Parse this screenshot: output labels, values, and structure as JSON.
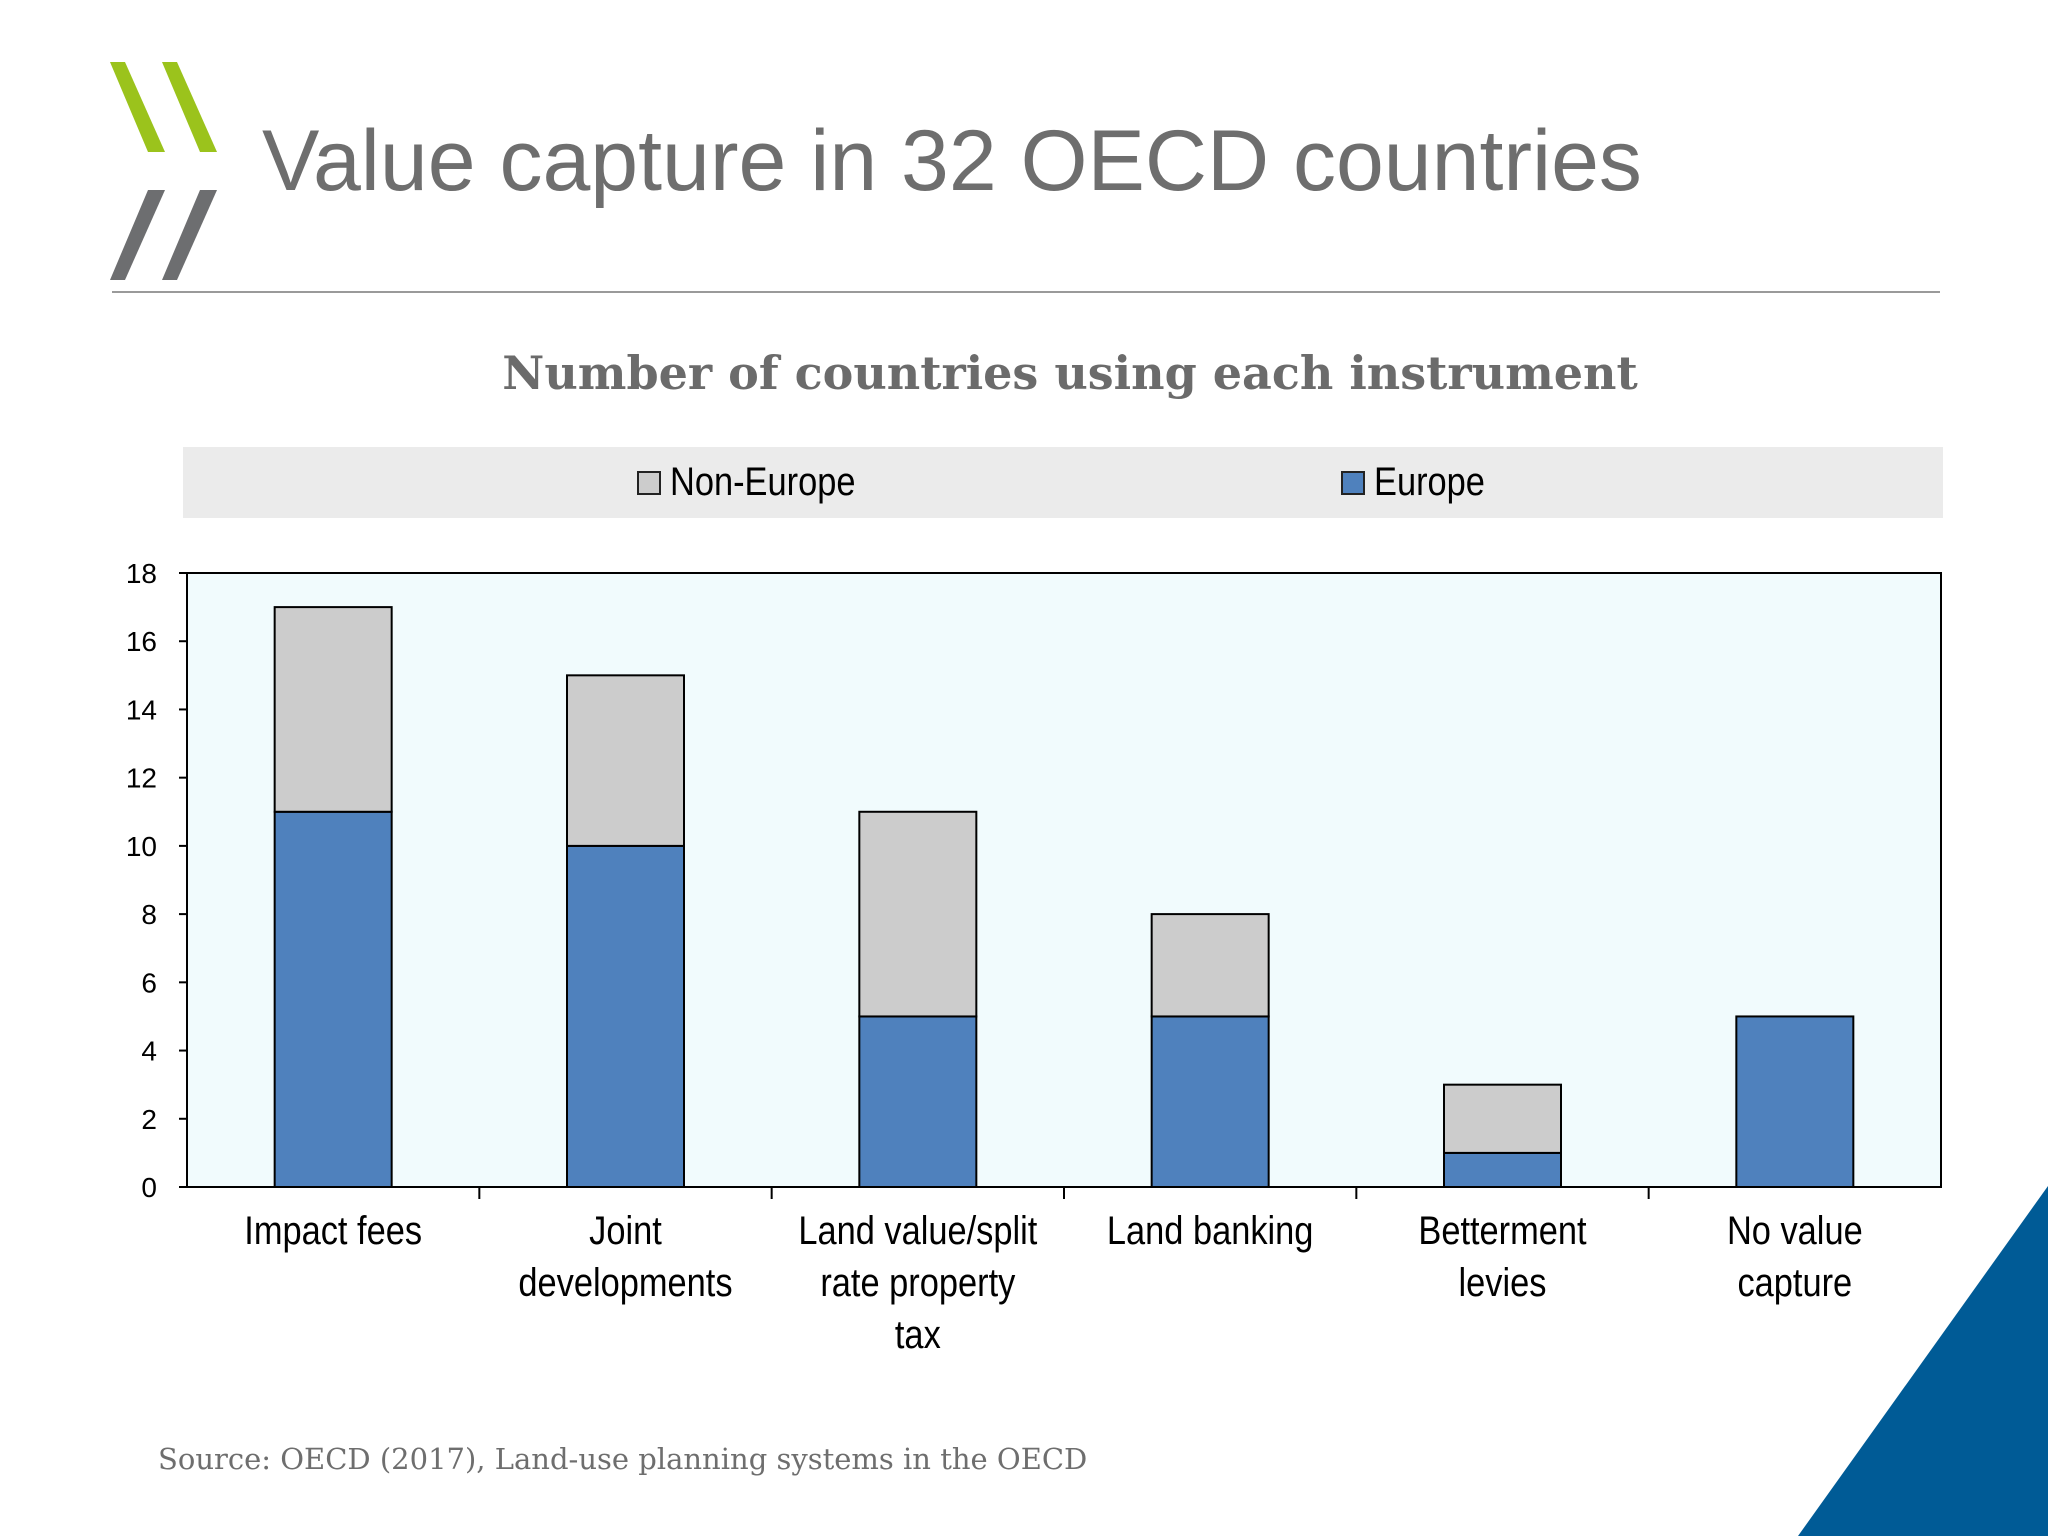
{
  "slide": {
    "title": "Value capture in 32 OECD countries",
    "source": "Source: OECD (2017), Land-use planning systems in the OECD",
    "colors": {
      "logo_green": "#9bc31c",
      "logo_gray": "#6d6e70",
      "corner_blue": "#005b96"
    }
  },
  "chart_data": {
    "type": "bar",
    "stacked": true,
    "title": "Number of countries using each instrument",
    "categories": [
      "Impact fees",
      "Joint developments",
      "Land value/split rate property tax",
      "Land banking",
      "Betterment levies",
      "No value capture"
    ],
    "category_label_lines": [
      [
        "Impact fees"
      ],
      [
        "Joint",
        "developments"
      ],
      [
        "Land value/split",
        "rate property",
        "tax"
      ],
      [
        "Land banking"
      ],
      [
        "Betterment",
        "levies"
      ],
      [
        "No value",
        "capture"
      ]
    ],
    "series": [
      {
        "name": "Europe",
        "values": [
          11,
          10,
          5,
          5,
          1,
          5
        ],
        "color": "#4f81bd"
      },
      {
        "name": "Non-Europe",
        "values": [
          6,
          5,
          6,
          3,
          2,
          0
        ],
        "color": "#cccccc"
      }
    ],
    "legend_order": [
      "Non-Europe",
      "Europe"
    ],
    "legend_position": "top",
    "xlabel": "",
    "ylabel": "",
    "ylim": [
      0,
      18
    ],
    "yticks": [
      0,
      2,
      4,
      6,
      8,
      10,
      12,
      14,
      16,
      18
    ],
    "grid": false,
    "plot_background": "#f1fbfd"
  }
}
